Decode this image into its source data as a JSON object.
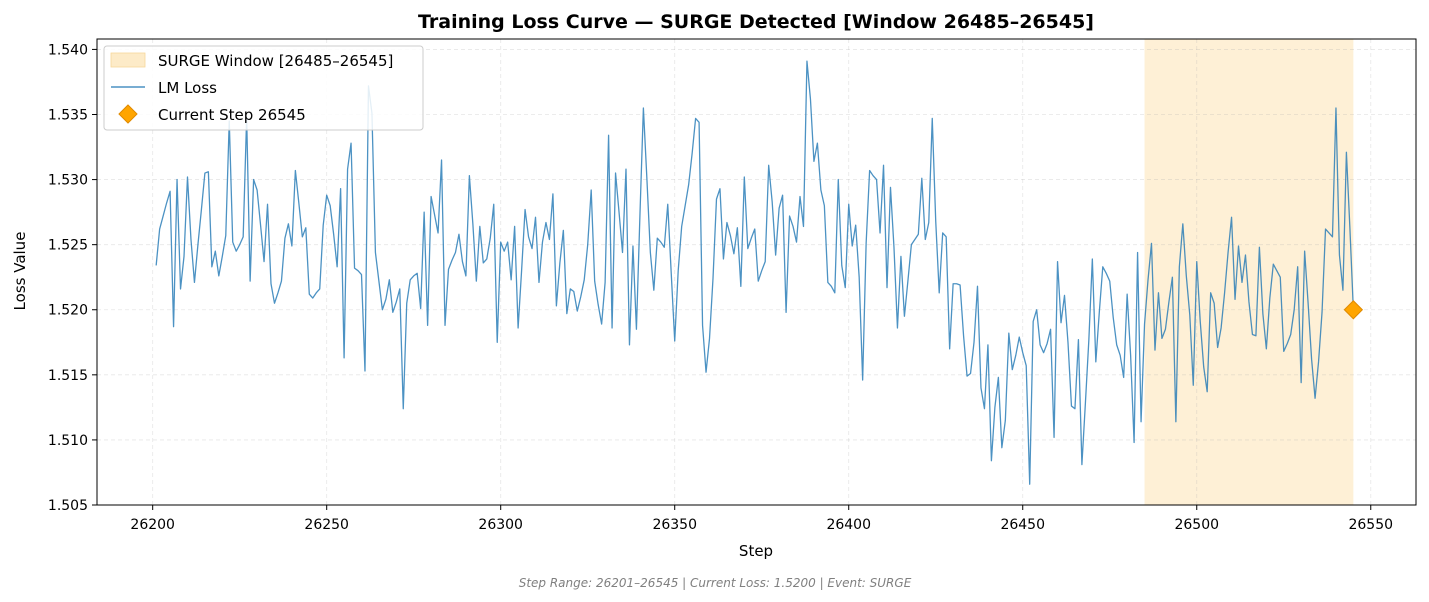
{
  "chart_data": {
    "type": "line",
    "title": "Training Loss Curve — SURGE Detected [Window 26485–26545]",
    "xlabel": "Step",
    "ylabel": "Loss Value",
    "xlim": [
      26184,
      26563
    ],
    "ylim": [
      1.505,
      1.5408
    ],
    "xticks": [
      26200,
      26250,
      26300,
      26350,
      26400,
      26450,
      26500,
      26550
    ],
    "yticks": [
      1.505,
      1.51,
      1.515,
      1.52,
      1.525,
      1.53,
      1.535,
      1.54
    ],
    "xtick_labels": [
      "26200",
      "26250",
      "26300",
      "26350",
      "26400",
      "26450",
      "26500",
      "26550"
    ],
    "ytick_labels": [
      "1.505",
      "1.510",
      "1.515",
      "1.520",
      "1.525",
      "1.530",
      "1.535",
      "1.540"
    ],
    "grid": true,
    "legend_position": "top-left",
    "colors": {
      "line": "#1f77b4",
      "window_fill": "#fdebc8",
      "marker": "#ffa500",
      "marker_edge": "#e08a00"
    },
    "surge_window": {
      "label": "SURGE Window [26485–26545]",
      "start": 26485,
      "end": 26545
    },
    "current_step": {
      "label": "Current Step 26545",
      "x": 26545,
      "y": 1.52
    },
    "series": [
      {
        "name": "LM Loss",
        "x_start": 26201,
        "x_step": 1,
        "values": [
          1.5234,
          1.5262,
          1.5272,
          1.5282,
          1.5291,
          1.5187,
          1.53,
          1.5216,
          1.5241,
          1.5302,
          1.5254,
          1.5221,
          1.525,
          1.5277,
          1.5305,
          1.5306,
          1.5233,
          1.5245,
          1.5226,
          1.5241,
          1.5257,
          1.5345,
          1.5252,
          1.5245,
          1.525,
          1.5256,
          1.5348,
          1.5222,
          1.53,
          1.5292,
          1.5265,
          1.5237,
          1.5281,
          1.522,
          1.5205,
          1.5213,
          1.5222,
          1.5255,
          1.5266,
          1.5249,
          1.5307,
          1.5282,
          1.5256,
          1.5263,
          1.5212,
          1.5209,
          1.5213,
          1.5216,
          1.5265,
          1.5288,
          1.528,
          1.5258,
          1.5233,
          1.5293,
          1.5163,
          1.5308,
          1.5328,
          1.5232,
          1.523,
          1.5227,
          1.5153,
          1.5372,
          1.5351,
          1.5244,
          1.5222,
          1.52,
          1.5208,
          1.5223,
          1.5198,
          1.5206,
          1.5216,
          1.5124,
          1.5205,
          1.5223,
          1.5226,
          1.5228,
          1.5201,
          1.5275,
          1.5188,
          1.5287,
          1.5273,
          1.5259,
          1.5315,
          1.5188,
          1.5231,
          1.5238,
          1.5244,
          1.5258,
          1.5237,
          1.5226,
          1.5303,
          1.5266,
          1.5222,
          1.5264,
          1.5236,
          1.5239,
          1.5255,
          1.5281,
          1.5175,
          1.5252,
          1.5245,
          1.5252,
          1.5223,
          1.5264,
          1.5186,
          1.523,
          1.5277,
          1.5256,
          1.5247,
          1.5271,
          1.5221,
          1.5252,
          1.5267,
          1.5254,
          1.5289,
          1.5203,
          1.5236,
          1.5261,
          1.5197,
          1.5216,
          1.5214,
          1.5199,
          1.521,
          1.5223,
          1.525,
          1.5292,
          1.5222,
          1.5204,
          1.5189,
          1.5221,
          1.5334,
          1.5186,
          1.5305,
          1.5275,
          1.5244,
          1.5308,
          1.5173,
          1.5249,
          1.5185,
          1.5272,
          1.5355,
          1.5301,
          1.5244,
          1.5215,
          1.5255,
          1.5252,
          1.5248,
          1.5281,
          1.5228,
          1.5176,
          1.523,
          1.5264,
          1.528,
          1.5296,
          1.532,
          1.5347,
          1.5344,
          1.5188,
          1.5152,
          1.5178,
          1.5224,
          1.5285,
          1.5293,
          1.5239,
          1.5267,
          1.5257,
          1.5243,
          1.5263,
          1.5218,
          1.5302,
          1.5247,
          1.5255,
          1.5262,
          1.5222,
          1.523,
          1.5237,
          1.5311,
          1.5283,
          1.5242,
          1.5278,
          1.5288,
          1.5198,
          1.5272,
          1.5264,
          1.5252,
          1.5287,
          1.5264,
          1.5391,
          1.5362,
          1.5314,
          1.5328,
          1.5292,
          1.528,
          1.5221,
          1.5218,
          1.5213,
          1.53,
          1.5234,
          1.5217,
          1.5281,
          1.5249,
          1.5265,
          1.5225,
          1.5146,
          1.5251,
          1.5307,
          1.5303,
          1.53,
          1.5259,
          1.5311,
          1.5217,
          1.5294,
          1.5248,
          1.5186,
          1.5241,
          1.5195,
          1.5222,
          1.525,
          1.5254,
          1.5258,
          1.5301,
          1.5254,
          1.5267,
          1.5347,
          1.5268,
          1.5213,
          1.5259,
          1.5256,
          1.517,
          1.522,
          1.522,
          1.5219,
          1.518,
          1.5149,
          1.5151,
          1.5175,
          1.5218,
          1.514,
          1.5124,
          1.5173,
          1.5084,
          1.5125,
          1.5148,
          1.5094,
          1.5115,
          1.5182,
          1.5154,
          1.5165,
          1.5179,
          1.5167,
          1.5157,
          1.5066,
          1.5191,
          1.52,
          1.5173,
          1.5167,
          1.5174,
          1.5185,
          1.5102,
          1.5237,
          1.519,
          1.5211,
          1.5175,
          1.5126,
          1.5124,
          1.5177,
          1.5081,
          1.5128,
          1.5177,
          1.5239,
          1.516,
          1.5198,
          1.5233,
          1.5228,
          1.5222,
          1.5194,
          1.5173,
          1.5165,
          1.5148,
          1.5212,
          1.5165,
          1.5098,
          1.5244,
          1.5114,
          1.5189,
          1.5223,
          1.5251,
          1.5169,
          1.5213,
          1.5178,
          1.5185,
          1.5206,
          1.5225,
          1.5114,
          1.5233,
          1.5266,
          1.5226,
          1.5196,
          1.5142,
          1.5237,
          1.5191,
          1.5156,
          1.5137,
          1.5213,
          1.5205,
          1.5171,
          1.5186,
          1.5213,
          1.5244,
          1.5271,
          1.5208,
          1.5249,
          1.5221,
          1.5242,
          1.5206,
          1.5181,
          1.518,
          1.5248,
          1.5197,
          1.517,
          1.5209,
          1.5235,
          1.523,
          1.5225,
          1.5168,
          1.5174,
          1.5181,
          1.52,
          1.5233,
          1.5144,
          1.5245,
          1.5205,
          1.5162,
          1.5132,
          1.516,
          1.5198,
          1.5262,
          1.5259,
          1.5256,
          1.5355,
          1.5242,
          1.5215,
          1.5321,
          1.5263,
          1.52
        ]
      }
    ],
    "footer": "Step Range: 26201–26545 | Current Loss: 1.5200 | Event: SURGE"
  }
}
